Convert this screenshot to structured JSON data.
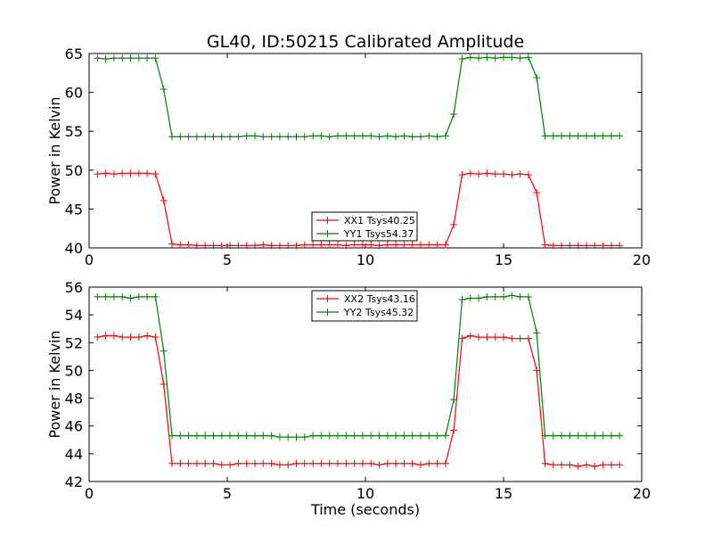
{
  "title": "GL40, ID:50215 Calibrated Amplitude",
  "colors": {
    "xx": "#ff0000",
    "yy": "#008000"
  },
  "chart_data": [
    {
      "type": "line",
      "xlabel": "",
      "ylabel": "Power in Kelvin",
      "xlim": [
        0,
        20
      ],
      "ylim": [
        40,
        65
      ],
      "xticks": [
        "0",
        "5",
        "10",
        "15",
        "20"
      ],
      "yticks": [
        "40",
        "45",
        "50",
        "55",
        "60",
        "65"
      ],
      "grid": false,
      "legend": "bottom-center",
      "x": [
        0.3,
        0.6,
        0.9,
        1.2,
        1.5,
        1.8,
        2.1,
        2.4,
        2.7,
        3.0,
        3.3,
        3.6,
        3.9,
        4.2,
        4.5,
        4.8,
        5.1,
        5.4,
        5.7,
        6.0,
        6.3,
        6.6,
        6.9,
        7.2,
        7.5,
        7.8,
        8.1,
        8.4,
        8.7,
        9.0,
        9.3,
        9.6,
        9.9,
        10.2,
        10.5,
        10.8,
        11.1,
        11.4,
        11.7,
        12.0,
        12.3,
        12.6,
        12.9,
        13.2,
        13.5,
        13.8,
        14.1,
        14.4,
        14.7,
        15.0,
        15.3,
        15.6,
        15.9,
        16.2,
        16.5,
        16.8,
        17.1,
        17.4,
        17.7,
        18.0,
        18.3,
        18.6,
        18.9,
        19.2
      ],
      "series": [
        {
          "name": "XX1 Tsys40.25",
          "color": "#ff0000",
          "values": [
            49.5,
            49.6,
            49.5,
            49.6,
            49.6,
            49.6,
            49.6,
            49.5,
            46.1,
            40.5,
            40.4,
            40.4,
            40.3,
            40.3,
            40.3,
            40.3,
            40.3,
            40.3,
            40.3,
            40.3,
            40.4,
            40.3,
            40.3,
            40.3,
            40.3,
            40.4,
            40.4,
            40.4,
            40.4,
            40.4,
            40.3,
            40.4,
            40.4,
            40.4,
            40.3,
            40.4,
            40.4,
            40.4,
            40.4,
            40.4,
            40.4,
            40.4,
            40.4,
            43.0,
            49.4,
            49.6,
            49.5,
            49.6,
            49.5,
            49.5,
            49.4,
            49.5,
            49.4,
            47.1,
            40.4,
            40.3,
            40.3,
            40.3,
            40.3,
            40.3,
            40.3,
            40.3,
            40.3,
            40.3
          ]
        },
        {
          "name": "YY1 Tsys54.37",
          "color": "#008000",
          "values": [
            64.4,
            64.3,
            64.4,
            64.4,
            64.4,
            64.4,
            64.4,
            64.4,
            60.4,
            54.3,
            54.3,
            54.3,
            54.3,
            54.3,
            54.3,
            54.3,
            54.3,
            54.3,
            54.4,
            54.4,
            54.3,
            54.3,
            54.3,
            54.3,
            54.3,
            54.3,
            54.4,
            54.4,
            54.3,
            54.4,
            54.4,
            54.4,
            54.4,
            54.4,
            54.3,
            54.4,
            54.3,
            54.4,
            54.3,
            54.3,
            54.4,
            54.3,
            54.4,
            57.2,
            64.3,
            64.5,
            64.4,
            64.5,
            64.4,
            64.5,
            64.5,
            64.4,
            64.5,
            61.9,
            54.4,
            54.4,
            54.4,
            54.4,
            54.4,
            54.4,
            54.4,
            54.4,
            54.4,
            54.4
          ]
        }
      ]
    },
    {
      "type": "line",
      "xlabel": "Time (seconds)",
      "ylabel": "Power in Kelvin",
      "xlim": [
        0,
        20
      ],
      "ylim": [
        42,
        56
      ],
      "xticks": [
        "0",
        "5",
        "10",
        "15",
        "20"
      ],
      "yticks": [
        "42",
        "44",
        "46",
        "48",
        "50",
        "52",
        "54",
        "56"
      ],
      "grid": false,
      "legend": "top-center",
      "x": [
        0.3,
        0.6,
        0.9,
        1.2,
        1.5,
        1.8,
        2.1,
        2.4,
        2.7,
        3.0,
        3.3,
        3.6,
        3.9,
        4.2,
        4.5,
        4.8,
        5.1,
        5.4,
        5.7,
        6.0,
        6.3,
        6.6,
        6.9,
        7.2,
        7.5,
        7.8,
        8.1,
        8.4,
        8.7,
        9.0,
        9.3,
        9.6,
        9.9,
        10.2,
        10.5,
        10.8,
        11.1,
        11.4,
        11.7,
        12.0,
        12.3,
        12.6,
        12.9,
        13.2,
        13.5,
        13.8,
        14.1,
        14.4,
        14.7,
        15.0,
        15.3,
        15.6,
        15.9,
        16.2,
        16.5,
        16.8,
        17.1,
        17.4,
        17.7,
        18.0,
        18.3,
        18.6,
        18.9,
        19.2
      ],
      "series": [
        {
          "name": "XX2 Tsys43.16",
          "color": "#ff0000",
          "values": [
            52.4,
            52.5,
            52.5,
            52.4,
            52.4,
            52.4,
            52.5,
            52.4,
            49.0,
            43.3,
            43.3,
            43.3,
            43.3,
            43.3,
            43.3,
            43.2,
            43.2,
            43.3,
            43.3,
            43.3,
            43.3,
            43.3,
            43.2,
            43.2,
            43.3,
            43.3,
            43.3,
            43.3,
            43.3,
            43.3,
            43.3,
            43.3,
            43.3,
            43.3,
            43.2,
            43.3,
            43.3,
            43.3,
            43.3,
            43.2,
            43.3,
            43.3,
            43.3,
            45.7,
            52.3,
            52.5,
            52.4,
            52.4,
            52.4,
            52.4,
            52.3,
            52.3,
            52.3,
            50.0,
            43.3,
            43.2,
            43.2,
            43.2,
            43.1,
            43.2,
            43.1,
            43.2,
            43.2,
            43.2
          ]
        },
        {
          "name": "YY2 Tsys45.32",
          "color": "#008000",
          "values": [
            55.3,
            55.3,
            55.3,
            55.3,
            55.2,
            55.3,
            55.3,
            55.3,
            51.4,
            45.3,
            45.3,
            45.3,
            45.3,
            45.3,
            45.3,
            45.3,
            45.3,
            45.3,
            45.3,
            45.3,
            45.3,
            45.3,
            45.2,
            45.2,
            45.2,
            45.2,
            45.3,
            45.3,
            45.3,
            45.3,
            45.3,
            45.3,
            45.3,
            45.3,
            45.3,
            45.3,
            45.3,
            45.3,
            45.3,
            45.3,
            45.3,
            45.3,
            45.3,
            47.9,
            55.1,
            55.2,
            55.2,
            55.3,
            55.3,
            55.3,
            55.4,
            55.3,
            55.3,
            52.7,
            45.3,
            45.3,
            45.3,
            45.3,
            45.3,
            45.3,
            45.3,
            45.3,
            45.3,
            45.3
          ]
        }
      ]
    }
  ]
}
